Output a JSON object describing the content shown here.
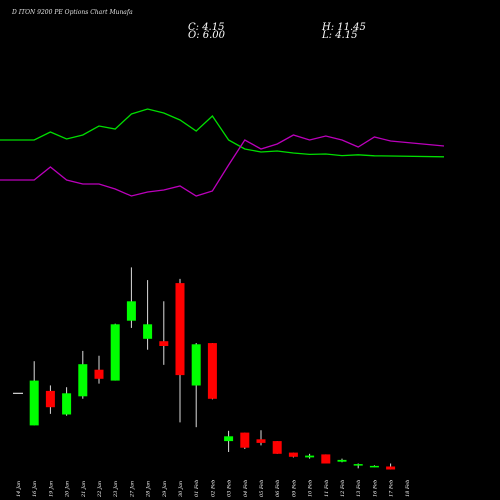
{
  "header": {
    "title": "D          ITON 9200 PE Options Chart Munafa",
    "close_label": "C: 4.15",
    "open_label": "O: 6.00",
    "high_label": "H: 11.45",
    "low_label": "L: 4.15"
  },
  "colors": {
    "background": "#000000",
    "up": "#00ff00",
    "down": "#ff0000",
    "wick": "#dddddd",
    "line_green": "#00dd00",
    "line_purple": "#bb00bb",
    "ref_line": "#ffffff"
  },
  "chart_data": {
    "type": "candlestick",
    "categories": [
      "14 Jan",
      "16 Jan",
      "19 Jan",
      "20 Jan",
      "21 Jan",
      "22 Jan",
      "23 Jan",
      "27 Jan",
      "28 Jan",
      "29 Jan",
      "30 Jan",
      "01 Feb",
      "02 Feb",
      "03 Feb",
      "04 Feb",
      "05 Feb",
      "06 Feb",
      "09 Feb",
      "10 Feb",
      "11 Feb",
      "12 Feb",
      "13 Feb",
      "16 Feb",
      "17 Feb",
      "18 Feb"
    ],
    "reference_level": 13.5,
    "candles": [
      {
        "o": null,
        "h": null,
        "l": null,
        "c": null
      },
      {
        "o": 8.2,
        "h": 18.8,
        "l": 8.2,
        "c": 15.6
      },
      {
        "o": 13.9,
        "h": 14.8,
        "l": 10.1,
        "c": 11.2
      },
      {
        "o": 10.0,
        "h": 14.5,
        "l": 9.8,
        "c": 13.5
      },
      {
        "o": 13.0,
        "h": 20.5,
        "l": 12.6,
        "c": 18.3
      },
      {
        "o": 17.4,
        "h": 19.7,
        "l": 15.1,
        "c": 15.9
      },
      {
        "o": 15.6,
        "h": 25.0,
        "l": 15.6,
        "c": 24.9
      },
      {
        "o": 25.5,
        "h": 34.3,
        "l": 24.3,
        "c": 28.7
      },
      {
        "o": 22.5,
        "h": 32.2,
        "l": 20.7,
        "c": 24.9
      },
      {
        "o": 22.1,
        "h": 28.7,
        "l": 18.2,
        "c": 21.3
      },
      {
        "o": 31.7,
        "h": 32.4,
        "l": 8.7,
        "c": 16.5
      },
      {
        "o": 14.8,
        "h": 21.8,
        "l": 7.9,
        "c": 21.6
      },
      {
        "o": 21.8,
        "h": 21.8,
        "l": 12.5,
        "c": 12.6
      },
      {
        "o": 5.6,
        "h": 7.3,
        "l": 3.8,
        "c": 6.4
      },
      {
        "o": 7.0,
        "h": 7.0,
        "l": 4.3,
        "c": 4.5
      },
      {
        "o": 5.9,
        "h": 7.4,
        "l": 4.9,
        "c": 5.3
      },
      {
        "o": 5.6,
        "h": 5.6,
        "l": 3.5,
        "c": 3.5
      },
      {
        "o": 3.7,
        "h": 3.7,
        "l": 2.9,
        "c": 3.0
      },
      {
        "o": 2.9,
        "h": 3.5,
        "l": 2.7,
        "c": 3.2
      },
      {
        "o": 3.4,
        "h": 3.4,
        "l": 1.9,
        "c": 1.9
      },
      {
        "o": 2.2,
        "h": 2.7,
        "l": 2.1,
        "c": 2.5
      },
      {
        "o": 1.6,
        "h": 1.9,
        "l": 1.1,
        "c": 1.8
      },
      {
        "o": 1.3,
        "h": 1.6,
        "l": 1.3,
        "c": 1.5
      },
      {
        "o": 1.4,
        "h": 1.9,
        "l": 0.9,
        "c": 0.9
      },
      {
        "o": null,
        "h": null,
        "l": null,
        "c": null
      }
    ],
    "ylim": [
      0,
      38
    ],
    "indicator_green": [
      50.0,
      50.0,
      54.0,
      50.5,
      52.5,
      57.0,
      55.5,
      63.0,
      65.5,
      63.5,
      60.0,
      54.5,
      62.0,
      50.0,
      45.5,
      44.0,
      44.5,
      43.5,
      42.8,
      43.0,
      42.2,
      42.6,
      42.1,
      42.0,
      41.6
    ],
    "indicator_purple": [
      30.0,
      30.0,
      36.5,
      30.0,
      28.0,
      28.0,
      25.5,
      22.0,
      24.0,
      25.0,
      27.0,
      22.0,
      24.5,
      37.5,
      50.0,
      45.5,
      48.0,
      52.5,
      50.0,
      52.0,
      50.0,
      46.5,
      51.5,
      49.5,
      47.0
    ],
    "indicator_ylim": [
      0,
      100
    ]
  }
}
